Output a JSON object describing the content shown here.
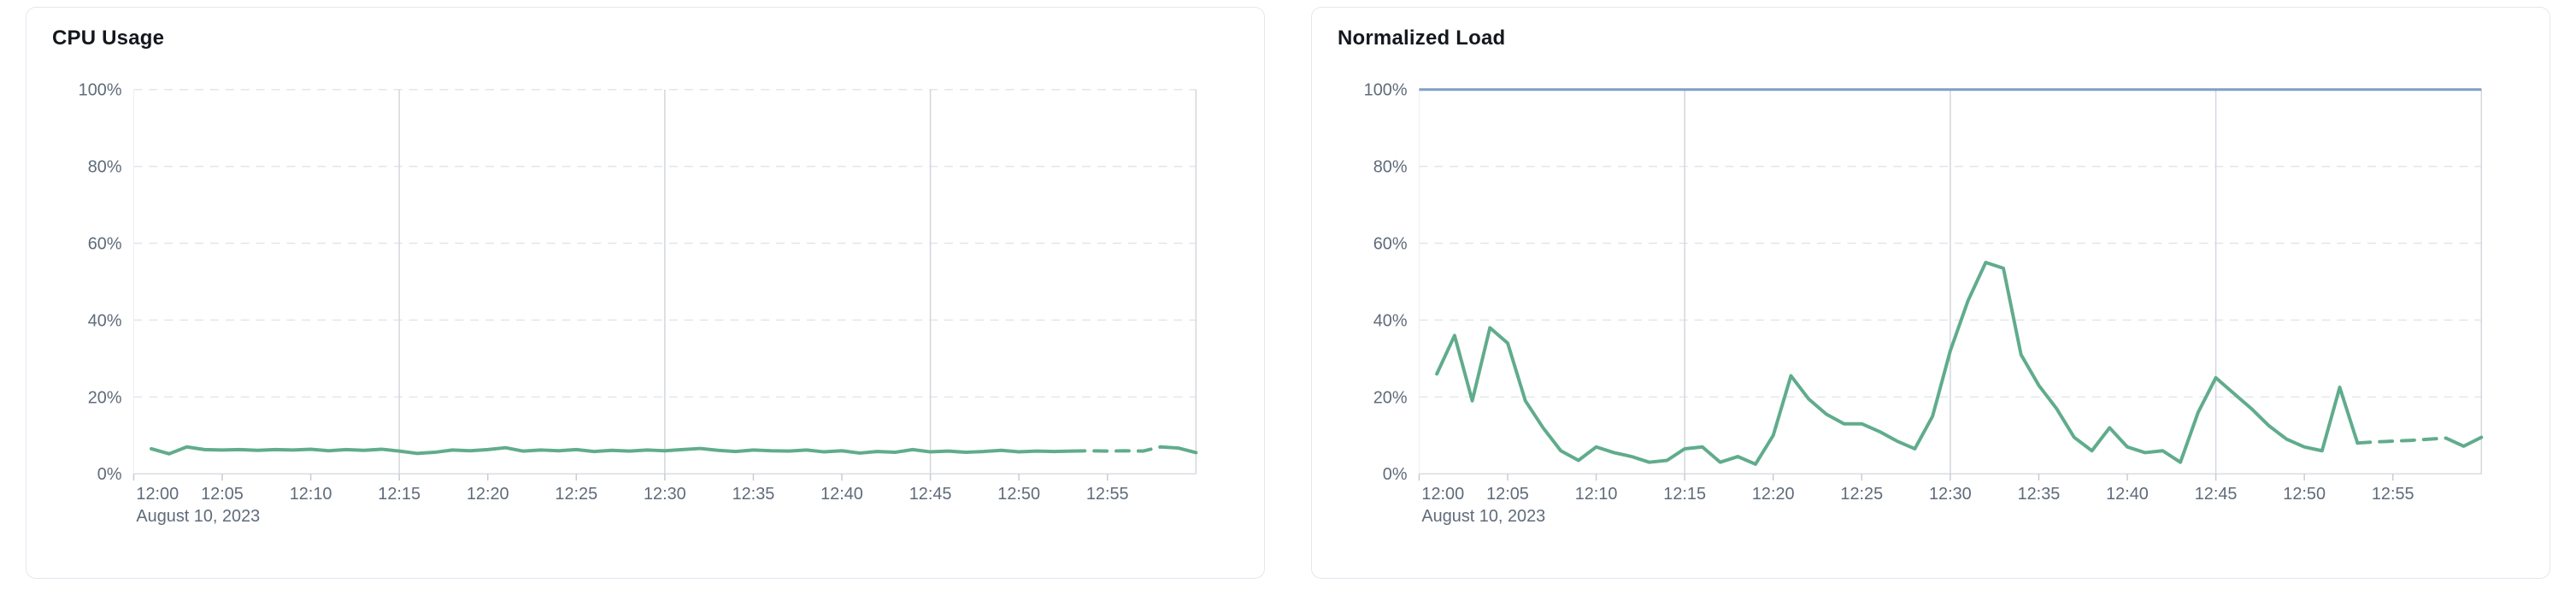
{
  "page": {
    "date_label": "August 10, 2023"
  },
  "chart_data": [
    {
      "type": "line",
      "title": "CPU Usage",
      "xlabel": "",
      "ylabel": "",
      "ylim": [
        0,
        100
      ],
      "y_tick_labels": [
        "0%",
        "20%",
        "40%",
        "60%",
        "80%",
        "100%"
      ],
      "x_tick_labels": [
        "12:00",
        "12:05",
        "12:10",
        "12:15",
        "12:20",
        "12:25",
        "12:30",
        "12:35",
        "12:40",
        "12:45",
        "12:50",
        "12:55"
      ],
      "date_label": "August 10, 2023",
      "x_span_minutes": 60,
      "x_tick_every_min": 5,
      "v_gridline_every_min": 15,
      "grid": "dashed-horizontal, solid-vertical-15min",
      "legend": "none",
      "threshold_line": null,
      "series": [
        {
          "name": "cpu-usage",
          "color": "#60ac8c",
          "start_minute": 1,
          "solid_end_index": 52,
          "dash_end_index": 57,
          "projection_style": "dashed",
          "values": [
            6.5,
            5.2,
            7.0,
            6.3,
            6.2,
            6.3,
            6.1,
            6.3,
            6.2,
            6.4,
            6.0,
            6.3,
            6.1,
            6.4,
            5.9,
            5.3,
            5.6,
            6.2,
            6.0,
            6.3,
            6.8,
            5.9,
            6.2,
            6.0,
            6.3,
            5.8,
            6.1,
            5.9,
            6.2,
            6.0,
            6.3,
            6.6,
            6.1,
            5.8,
            6.2,
            6.0,
            5.9,
            6.2,
            5.7,
            6.0,
            5.4,
            5.8,
            5.6,
            6.3,
            5.7,
            5.9,
            5.6,
            5.8,
            6.1,
            5.7,
            5.9,
            5.8,
            5.9,
            6.0,
            5.9,
            6.0,
            5.9,
            7.0,
            6.7,
            5.5
          ]
        }
      ]
    },
    {
      "type": "line",
      "title": "Normalized Load",
      "xlabel": "",
      "ylabel": "",
      "ylim": [
        0,
        100
      ],
      "y_tick_labels": [
        "0%",
        "20%",
        "40%",
        "60%",
        "80%",
        "100%"
      ],
      "x_tick_labels": [
        "12:00",
        "12:05",
        "12:10",
        "12:15",
        "12:20",
        "12:25",
        "12:30",
        "12:35",
        "12:40",
        "12:45",
        "12:50",
        "12:55"
      ],
      "date_label": "August 10, 2023",
      "x_span_minutes": 60,
      "x_tick_every_min": 5,
      "v_gridline_every_min": 15,
      "grid": "dashed-horizontal, solid-vertical-15min",
      "legend": "none",
      "threshold_line": {
        "value": 100,
        "color": "#7f9ec7"
      },
      "series": [
        {
          "name": "normalized-load",
          "color": "#60ac8c",
          "start_minute": 1,
          "solid_end_index": 52,
          "dash_end_index": 57,
          "projection_style": "dashed",
          "values": [
            26,
            36,
            19,
            38,
            34,
            19,
            12,
            6,
            3.5,
            7,
            5.5,
            4.5,
            3,
            3.5,
            6.5,
            7,
            3,
            4.5,
            2.5,
            10,
            25.5,
            19.5,
            15.5,
            13,
            13,
            11,
            8.5,
            6.5,
            15,
            32,
            45,
            55,
            53.5,
            31,
            23,
            17,
            9.5,
            6,
            12,
            7,
            5.5,
            6,
            3,
            16,
            25,
            21,
            17,
            12.5,
            9,
            7,
            6,
            22.5,
            8,
            8.3,
            8.5,
            8.7,
            9,
            9.3,
            7.2,
            9.5
          ]
        }
      ]
    }
  ],
  "style": {
    "line_color": "#60ac8c",
    "threshold_color": "#7f9ec7",
    "v_gridline_color": "#d3d7dc",
    "h_gridline_color": "#e1e5ee",
    "axis_line_color": "#d9dde3",
    "tick_color": "#c6ccd4",
    "label_color": "#5f6b7a"
  }
}
